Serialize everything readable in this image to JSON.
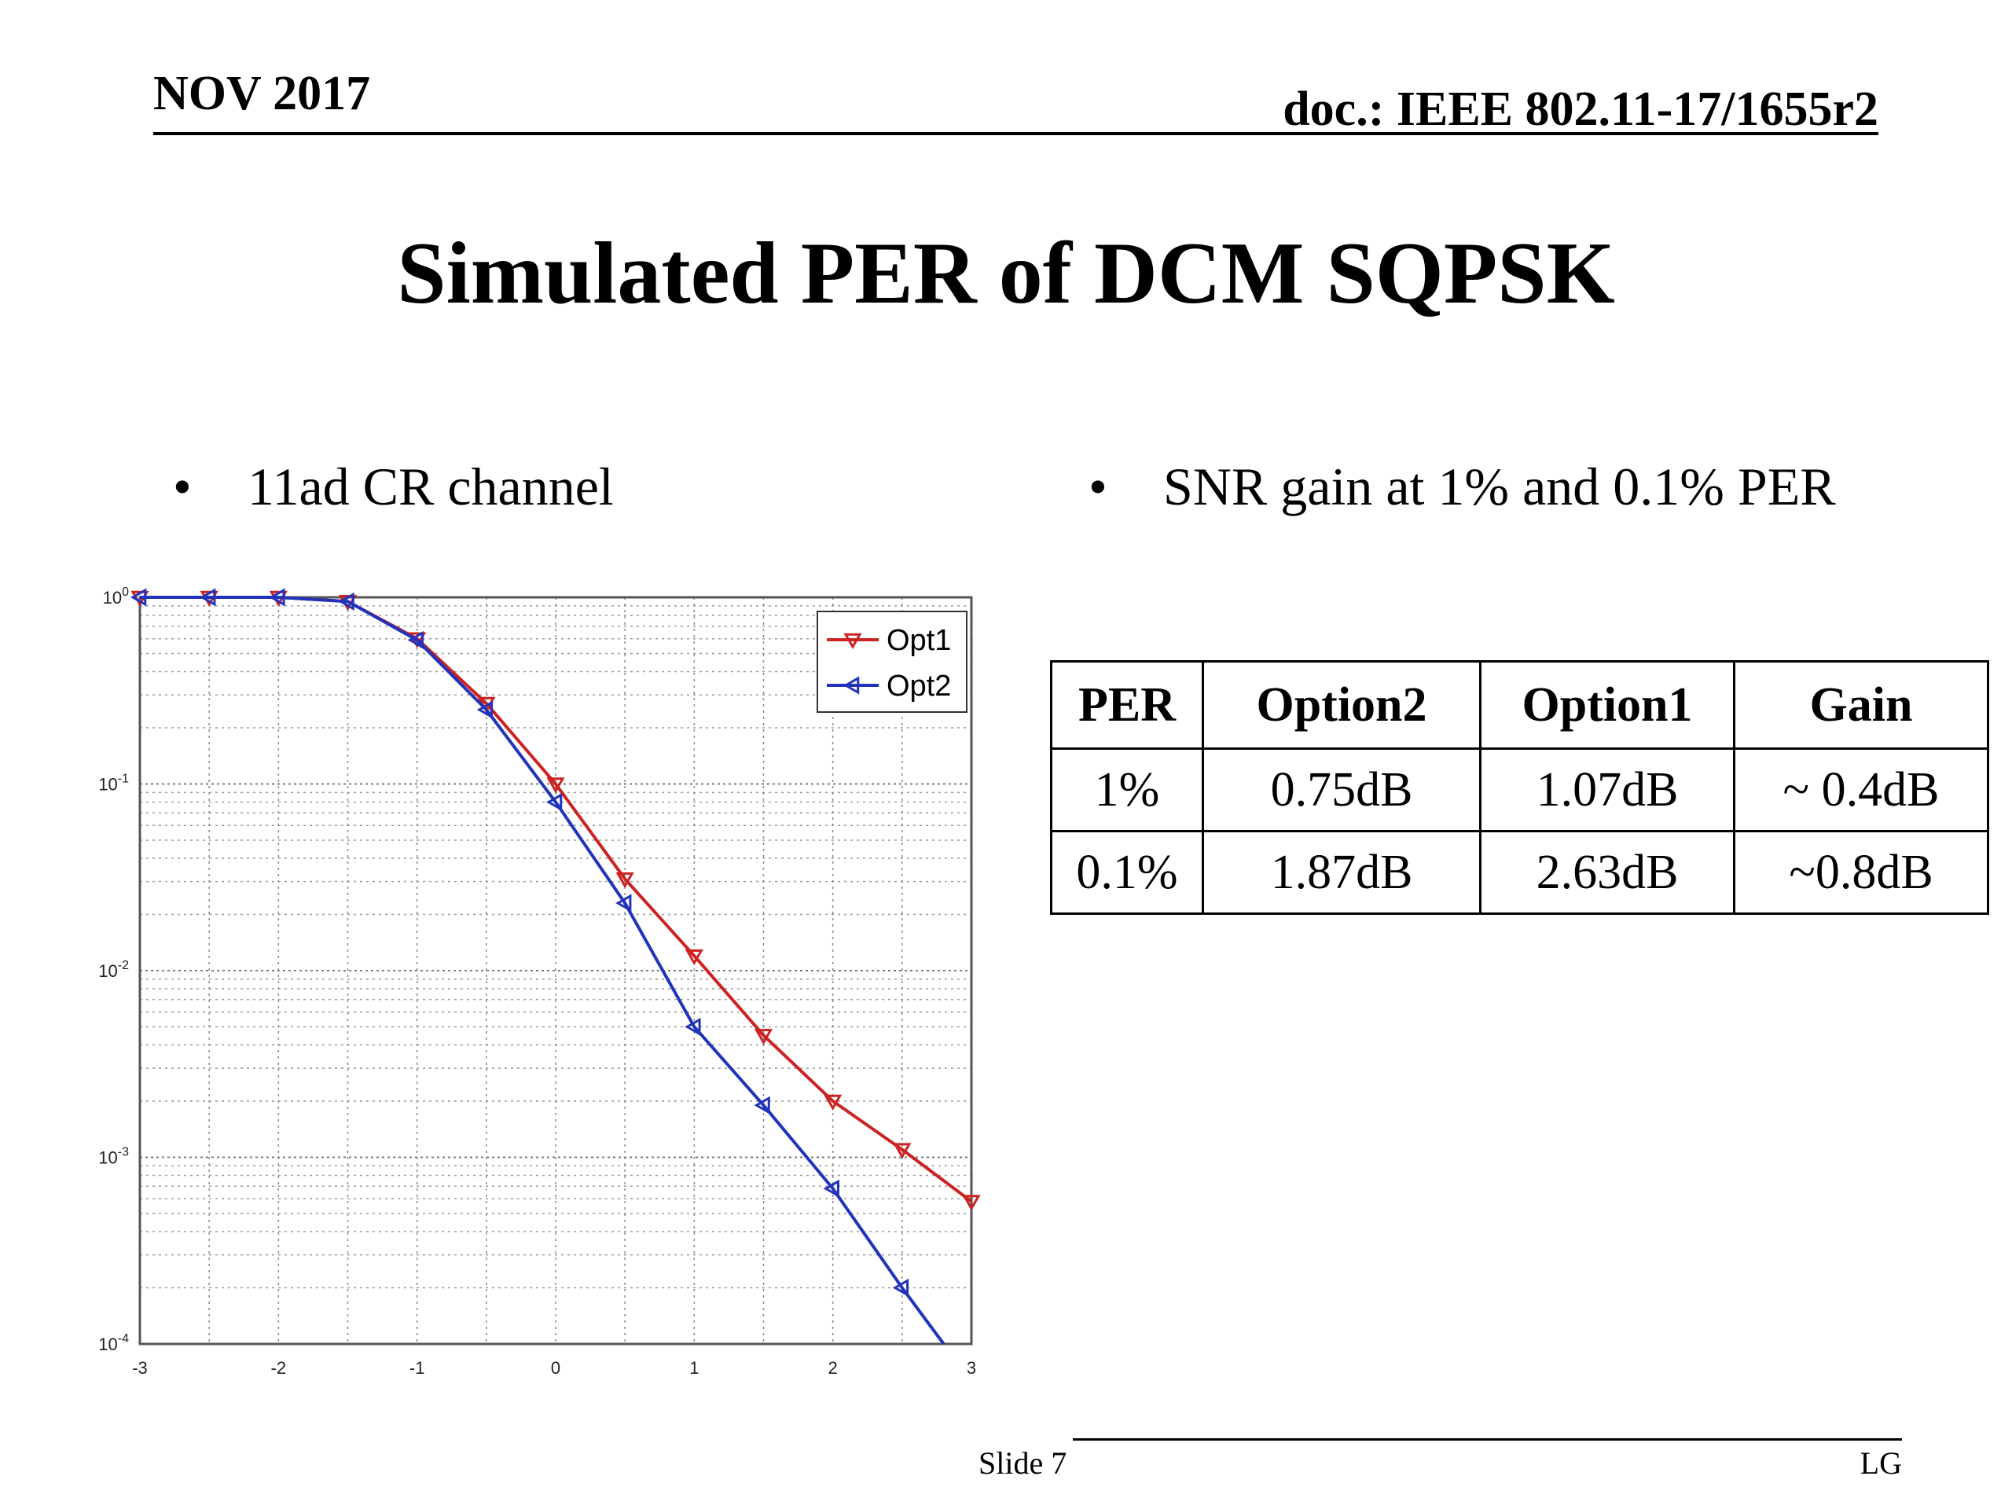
{
  "header": {
    "date": "NOV 2017",
    "doc_id": "doc.: IEEE 802.11-17/1655r2"
  },
  "title": "Simulated PER of DCM SQPSK",
  "bullets": {
    "left": "11ad CR channel",
    "right": "SNR gain at 1% and 0.1% PER",
    "marker": "•"
  },
  "chart_data": {
    "type": "line",
    "title": "",
    "xlabel": "",
    "ylabel": "",
    "x_ticks": [
      "-3",
      "-2",
      "-1",
      "0",
      "1",
      "2",
      "3"
    ],
    "y_ticks": [
      "10^0",
      "10^-1",
      "10^-2",
      "10^-3",
      "10^-4"
    ],
    "xlim": [
      -3,
      3
    ],
    "ylim": [
      0.0001,
      1
    ],
    "y_scale": "log",
    "grid": true,
    "legend_position": "top-right",
    "series": [
      {
        "name": "Opt1",
        "color": "#cc2222",
        "marker": "triangle-down",
        "x": [
          -3,
          -2.5,
          -2,
          -1.5,
          -1,
          -0.5,
          0,
          0.5,
          1,
          1.5,
          2,
          2.5,
          3
        ],
        "y": [
          1.0,
          1.0,
          1.0,
          0.95,
          0.6,
          0.27,
          0.1,
          0.031,
          0.012,
          0.0045,
          0.002,
          0.0011,
          0.00058
        ]
      },
      {
        "name": "Opt2",
        "color": "#2233bb",
        "marker": "triangle-left",
        "x": [
          -3,
          -2.5,
          -2,
          -1.5,
          -1,
          -0.5,
          0,
          0.5,
          1,
          1.5,
          2,
          2.5,
          2.8
        ],
        "y": [
          1.0,
          1.0,
          1.0,
          0.95,
          0.59,
          0.25,
          0.08,
          0.023,
          0.005,
          0.0019,
          0.00068,
          0.0002,
          0.0001
        ]
      }
    ]
  },
  "table": {
    "headers": [
      "PER",
      "Option2",
      "Option1",
      "Gain"
    ],
    "rows": [
      [
        "1%",
        "0.75dB",
        "1.07dB",
        "~ 0.4dB"
      ],
      [
        "0.1%",
        "1.87dB",
        "2.63dB",
        "~0.8dB"
      ]
    ]
  },
  "footer": {
    "slide": "Slide 7",
    "author": "LG"
  }
}
